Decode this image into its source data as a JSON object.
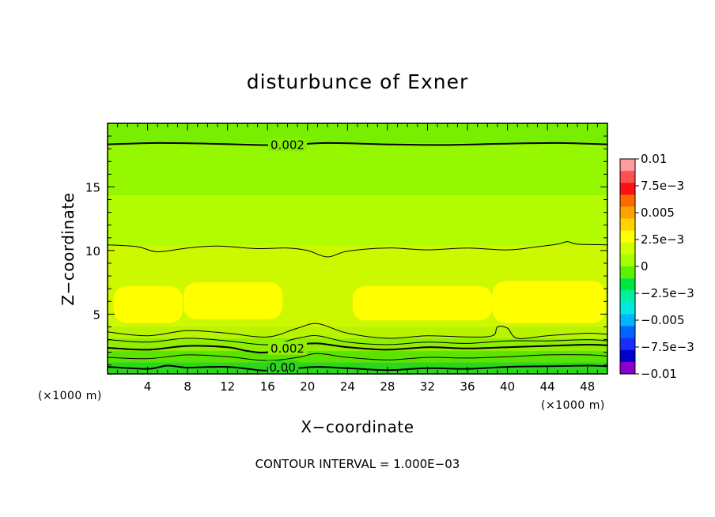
{
  "chart_data": {
    "type": "contour",
    "title": "disturbunce of Exner",
    "xlabel": "X−coordinate",
    "ylabel": "Z−coordinate",
    "x_unit": "(×1000 m)",
    "y_unit": "(×1000 m)",
    "xlim": [
      0,
      50
    ],
    "ylim": [
      0.3,
      20
    ],
    "x_ticks": [
      4,
      8,
      12,
      16,
      20,
      24,
      28,
      32,
      36,
      40,
      44,
      48
    ],
    "x_tick_labels": [
      "4",
      "8",
      "12",
      "16",
      "20",
      "24",
      "28",
      "32",
      "36",
      "40",
      "44",
      "48"
    ],
    "y_ticks": [
      5,
      10,
      15
    ],
    "y_tick_labels": [
      "5",
      "10",
      "15"
    ],
    "contour_interval_text": "CONTOUR INTERVAL = 1.000E−03",
    "contour_labels": [
      {
        "text": "0.002",
        "x": 18,
        "z": 18.3
      },
      {
        "text": "0.002",
        "x": 18,
        "z": 2.3
      },
      {
        "text": "0.00",
        "x": 17.5,
        "z": 0.8
      }
    ],
    "colorbar": {
      "labels": [
        "0.01",
        "7.5e−3",
        "0.005",
        "2.5e−3",
        "0",
        "−2.5e−3",
        "−0.005",
        "−7.5e−3",
        "−0.01"
      ],
      "colors": [
        "#ff9d9d",
        "#ff5050",
        "#ff1010",
        "#ff6a00",
        "#ffa200",
        "#ffd200",
        "#ffff00",
        "#d2ff00",
        "#a4ff00",
        "#5ef000",
        "#00e640",
        "#00f0a0",
        "#00e8e0",
        "#00b4ff",
        "#0064ff",
        "#1a2cff",
        "#0000cc",
        "#8a00c8"
      ]
    },
    "fill_bands": [
      {
        "zmin": 18.4,
        "zmax": 20,
        "color": "#78ee00"
      },
      {
        "zmin": 14.3,
        "zmax": 18.4,
        "color": "#96f800"
      },
      {
        "zmin": 10.4,
        "zmax": 14.3,
        "color": "#b4fc00"
      },
      {
        "zmin": 4.0,
        "zmax": 10.4,
        "color": "#ccf800"
      },
      {
        "zmin": 3.1,
        "zmax": 4.0,
        "color": "#b8f400"
      },
      {
        "zmin": 2.1,
        "zmax": 3.1,
        "color": "#90ee00"
      },
      {
        "zmin": 1.2,
        "zmax": 2.1,
        "color": "#5ce400"
      },
      {
        "zmin": 0.3,
        "zmax": 1.2,
        "color": "#2cd61c"
      }
    ],
    "yellow_patches": [
      {
        "x0": 0.6,
        "x1": 7.5,
        "z0": 4.3,
        "z1": 7.2
      },
      {
        "x0": 7.6,
        "x1": 17.5,
        "z0": 4.6,
        "z1": 7.5
      },
      {
        "x0": 24.5,
        "x1": 38.5,
        "z0": 4.5,
        "z1": 7.2
      },
      {
        "x0": 38.5,
        "x1": 49.8,
        "z0": 4.3,
        "z1": 7.6
      }
    ],
    "contour_lines": [
      {
        "weight": "thick",
        "points": [
          [
            0,
            18.35
          ],
          [
            5,
            18.45
          ],
          [
            10,
            18.4
          ],
          [
            15,
            18.3
          ],
          [
            18,
            18.3
          ],
          [
            22,
            18.45
          ],
          [
            28,
            18.35
          ],
          [
            34,
            18.3
          ],
          [
            40,
            18.4
          ],
          [
            45,
            18.45
          ],
          [
            50,
            18.35
          ]
        ]
      },
      {
        "weight": "thin",
        "points": [
          [
            0,
            10.45
          ],
          [
            3,
            10.3
          ],
          [
            5,
            9.9
          ],
          [
            8,
            10.2
          ],
          [
            11,
            10.35
          ],
          [
            15,
            10.15
          ],
          [
            18,
            10.2
          ],
          [
            20,
            10.0
          ],
          [
            22,
            9.5
          ],
          [
            24,
            9.95
          ],
          [
            28,
            10.2
          ],
          [
            32,
            10.05
          ],
          [
            36,
            10.2
          ],
          [
            40,
            10.05
          ],
          [
            43,
            10.3
          ],
          [
            45,
            10.5
          ],
          [
            46,
            10.7
          ],
          [
            47,
            10.5
          ],
          [
            50,
            10.45
          ]
        ]
      },
      {
        "weight": "thin",
        "points": [
          [
            0,
            3.6
          ],
          [
            4,
            3.3
          ],
          [
            8,
            3.7
          ],
          [
            12,
            3.5
          ],
          [
            16,
            3.2
          ],
          [
            19,
            3.9
          ],
          [
            21,
            4.25
          ],
          [
            24,
            3.5
          ],
          [
            28,
            3.1
          ],
          [
            32,
            3.3
          ],
          [
            36,
            3.2
          ],
          [
            38.5,
            3.3
          ],
          [
            39,
            4.0
          ],
          [
            40,
            3.9
          ],
          [
            41,
            3.1
          ],
          [
            44,
            3.3
          ],
          [
            48,
            3.5
          ],
          [
            50,
            3.4
          ]
        ]
      },
      {
        "weight": "thin",
        "points": [
          [
            0,
            3.0
          ],
          [
            4,
            2.8
          ],
          [
            8,
            3.1
          ],
          [
            12,
            2.9
          ],
          [
            16,
            2.6
          ],
          [
            19,
            3.1
          ],
          [
            21,
            3.3
          ],
          [
            24,
            2.8
          ],
          [
            28,
            2.6
          ],
          [
            32,
            2.8
          ],
          [
            36,
            2.7
          ],
          [
            40,
            2.9
          ],
          [
            44,
            2.9
          ],
          [
            48,
            3.0
          ],
          [
            50,
            2.9
          ]
        ]
      },
      {
        "weight": "thick",
        "points": [
          [
            0,
            2.35
          ],
          [
            4,
            2.2
          ],
          [
            8,
            2.5
          ],
          [
            12,
            2.4
          ],
          [
            14,
            2.1
          ],
          [
            16,
            2.0
          ],
          [
            19,
            2.55
          ],
          [
            21,
            2.7
          ],
          [
            24,
            2.4
          ],
          [
            28,
            2.2
          ],
          [
            32,
            2.4
          ],
          [
            36,
            2.3
          ],
          [
            40,
            2.4
          ],
          [
            44,
            2.5
          ],
          [
            48,
            2.6
          ],
          [
            50,
            2.55
          ]
        ]
      },
      {
        "weight": "thin",
        "points": [
          [
            0,
            1.6
          ],
          [
            4,
            1.5
          ],
          [
            8,
            1.8
          ],
          [
            12,
            1.65
          ],
          [
            16,
            1.35
          ],
          [
            19,
            1.6
          ],
          [
            21,
            1.9
          ],
          [
            24,
            1.6
          ],
          [
            28,
            1.4
          ],
          [
            32,
            1.6
          ],
          [
            36,
            1.55
          ],
          [
            40,
            1.65
          ],
          [
            44,
            1.8
          ],
          [
            48,
            1.8
          ],
          [
            50,
            1.7
          ]
        ]
      },
      {
        "weight": "thick",
        "points": [
          [
            0,
            0.85
          ],
          [
            4,
            0.7
          ],
          [
            6,
            0.95
          ],
          [
            8,
            0.8
          ],
          [
            12,
            0.85
          ],
          [
            16,
            0.55
          ],
          [
            19,
            0.75
          ],
          [
            21,
            0.85
          ],
          [
            24,
            0.75
          ],
          [
            28,
            0.6
          ],
          [
            32,
            0.75
          ],
          [
            36,
            0.7
          ],
          [
            40,
            0.85
          ],
          [
            44,
            0.9
          ],
          [
            48,
            0.95
          ],
          [
            50,
            0.9
          ]
        ]
      }
    ]
  }
}
